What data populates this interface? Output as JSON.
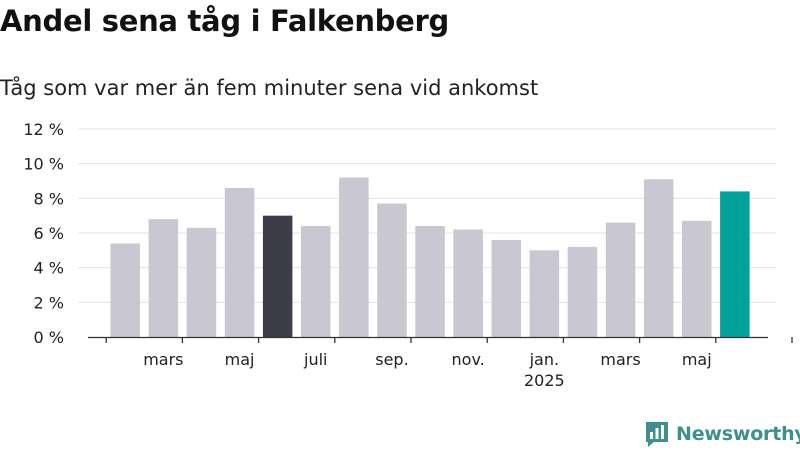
{
  "title": "Andel sena tåg i Falkenberg",
  "subtitle": "Tåg som var mer än fem minuter sena vid ankomst",
  "brand": {
    "name": "Newsworthy",
    "color": "#3f8f8c"
  },
  "chart_data": {
    "type": "bar",
    "title": "Andel sena tåg i Falkenberg",
    "subtitle": "Tåg som var mer än fem minuter sena vid ankomst",
    "xlabel": "",
    "ylabel": "",
    "ylim": [
      0,
      12
    ],
    "yticks": [
      0,
      2,
      4,
      6,
      8,
      10,
      12
    ],
    "ytick_suffix": " %",
    "grid": true,
    "legend": "none",
    "categories": [
      "feb. 2024",
      "mars 2024",
      "apr. 2024",
      "maj 2024",
      "juni 2024",
      "juli 2024",
      "aug. 2024",
      "sep. 2024",
      "okt. 2024",
      "nov. 2024",
      "dec. 2024",
      "jan. 2025",
      "feb. 2025",
      "mars 2025",
      "apr. 2025",
      "maj 2025",
      "juni 2025"
    ],
    "values": [
      5.4,
      6.8,
      6.3,
      8.6,
      7.0,
      6.4,
      9.2,
      7.7,
      6.4,
      6.2,
      5.6,
      5.0,
      5.2,
      6.6,
      9.1,
      6.7,
      8.4
    ],
    "highlight": {
      "4": "#3d3c49",
      "16": "#00a29a"
    },
    "default_color": "#c8c7d2",
    "x_tick_labels": [
      {
        "index": 1,
        "label": "mars"
      },
      {
        "index": 3,
        "label": "maj"
      },
      {
        "index": 5,
        "label": "juli"
      },
      {
        "index": 7,
        "label": "sep."
      },
      {
        "index": 9,
        "label": "nov."
      },
      {
        "index": 11,
        "label": "jan.",
        "sub": "2025"
      },
      {
        "index": 13,
        "label": "mars"
      },
      {
        "index": 15,
        "label": "maj"
      }
    ]
  }
}
